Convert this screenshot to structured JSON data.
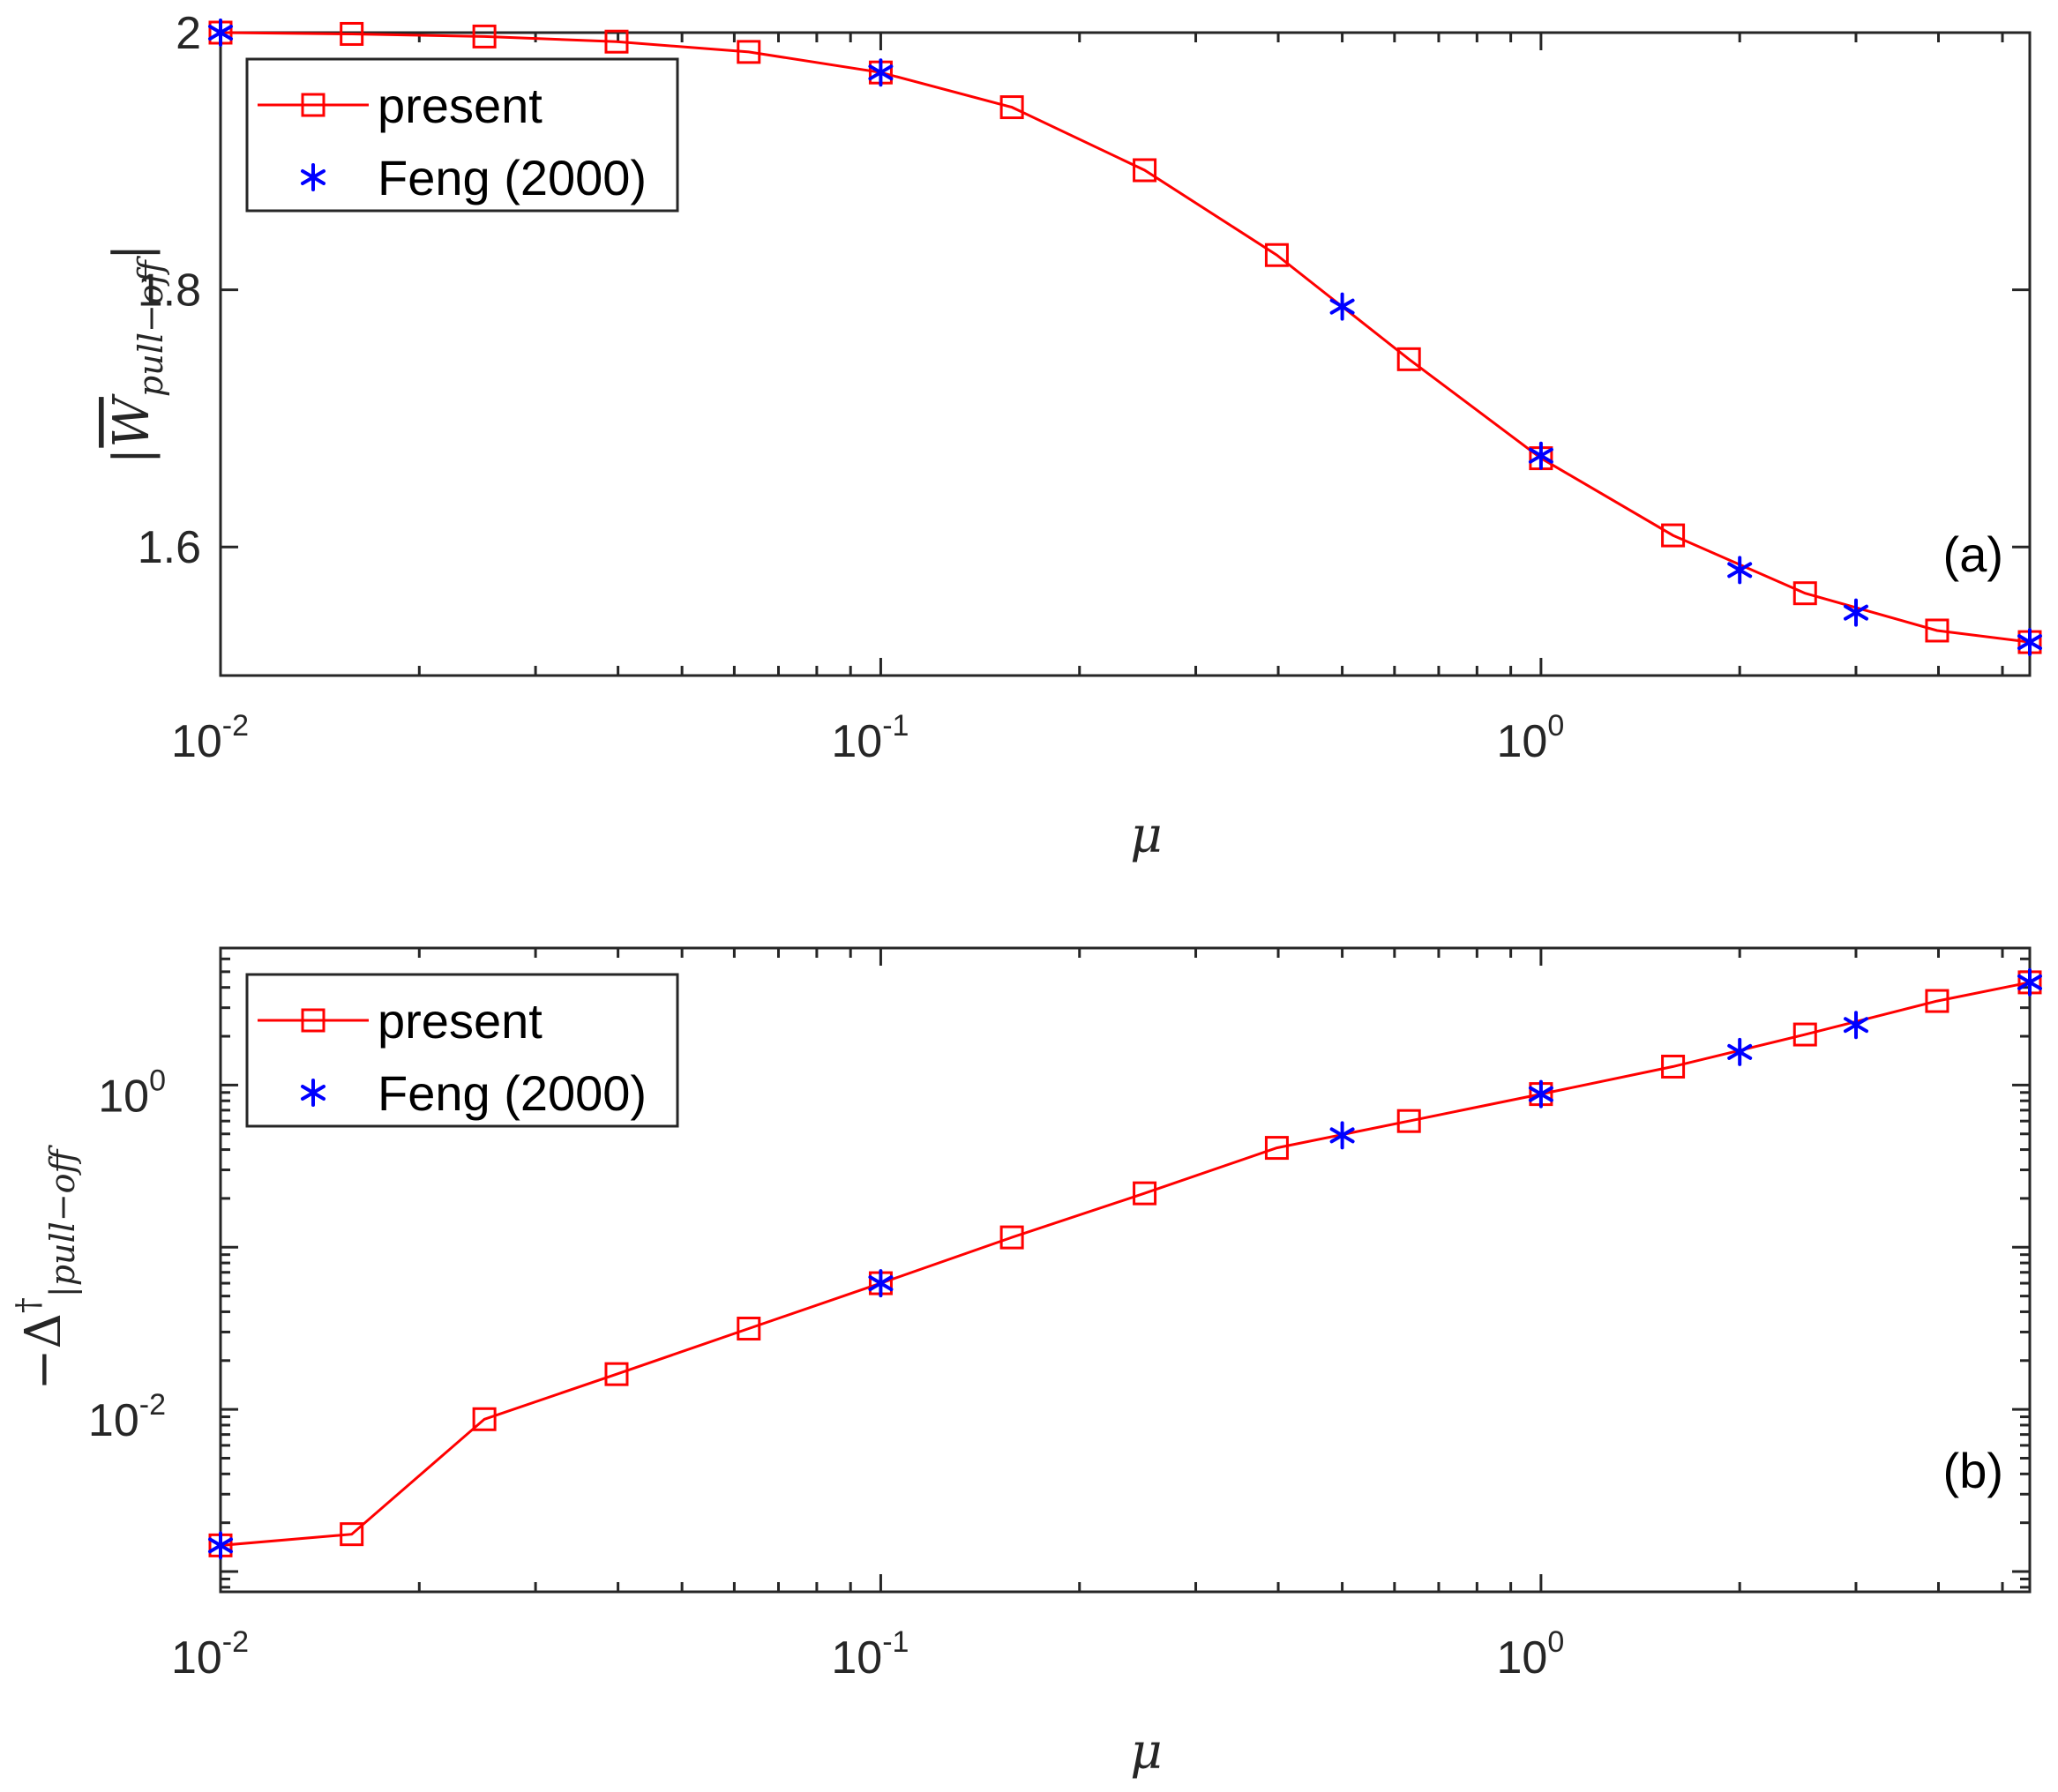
{
  "chart_data": [
    {
      "type": "line",
      "panel_label": "(a)",
      "xlabel": "μ",
      "ylabel": "|W̄pull−off|",
      "ylabel_base": "|",
      "ylabel_symbol": "W",
      "ylabel_sub": "pull−off",
      "ylabel_close": "|",
      "xscale": "log",
      "yscale": "linear",
      "xlim": [
        0.01,
        5.5
      ],
      "ylim": [
        1.5,
        2.0
      ],
      "xticks": [
        0.01,
        0.1,
        1
      ],
      "xtick_bases": [
        "10",
        "10",
        "10"
      ],
      "xtick_exps": [
        "-2",
        "-1",
        "0"
      ],
      "yticks": [
        1.6,
        1.8,
        2.0
      ],
      "ytick_labels": [
        "1.6",
        "1.8",
        "2"
      ],
      "legend": {
        "position": "top-left",
        "entries": [
          "present",
          "Feng (2000)"
        ]
      },
      "series": [
        {
          "name": "present",
          "color": "#ff0000",
          "marker": "square",
          "line": true,
          "x": [
            0.01,
            0.0158,
            0.0251,
            0.0398,
            0.0631,
            0.1,
            0.158,
            0.251,
            0.398,
            0.631,
            1.0,
            1.585,
            2.512,
            3.981,
            5.5
          ],
          "y": [
            2.0,
            1.999,
            1.997,
            1.993,
            1.985,
            1.969,
            1.942,
            1.893,
            1.827,
            1.746,
            1.669,
            1.609,
            1.564,
            1.535,
            1.526
          ]
        },
        {
          "name": "Feng (2000)",
          "color": "#0000ff",
          "marker": "asterisk",
          "line": false,
          "x": [
            0.01,
            0.1,
            0.5,
            1.0,
            2.0,
            3.0,
            5.5
          ],
          "y": [
            2.0,
            1.969,
            1.787,
            1.671,
            1.582,
            1.549,
            1.526
          ]
        }
      ]
    },
    {
      "type": "line",
      "panel_label": "(b)",
      "xlabel": "μ",
      "ylabel": "−Δ†|pull−off",
      "ylabel_base": "−Δ",
      "ylabel_sup": "†",
      "ylabel_sub": "|pull−off",
      "xscale": "log",
      "yscale": "log",
      "xlim": [
        0.01,
        5.5
      ],
      "ylim": [
        0.00075,
        7
      ],
      "xticks": [
        0.01,
        0.1,
        1
      ],
      "xtick_bases": [
        "10",
        "10",
        "10"
      ],
      "xtick_exps": [
        "-2",
        "-1",
        "0"
      ],
      "yticks": [
        0.01,
        1
      ],
      "ytick_bases": [
        "10",
        "10"
      ],
      "ytick_exps": [
        "-2",
        "0"
      ],
      "legend": {
        "position": "top-left",
        "entries": [
          "present",
          "Feng (2000)"
        ]
      },
      "series": [
        {
          "name": "present",
          "color": "#ff0000",
          "marker": "square",
          "line": true,
          "x": [
            0.01,
            0.0158,
            0.0251,
            0.0398,
            0.0631,
            0.1,
            0.158,
            0.251,
            0.398,
            0.631,
            1.0,
            1.585,
            2.512,
            3.981,
            5.5
          ],
          "y": [
            0.00145,
            0.0017,
            0.0087,
            0.0165,
            0.0315,
            0.06,
            0.115,
            0.215,
            0.41,
            0.6,
            0.88,
            1.3,
            2.05,
            3.3,
            4.3
          ]
        },
        {
          "name": "Feng (2000)",
          "color": "#0000ff",
          "marker": "asterisk",
          "line": false,
          "x": [
            0.01,
            0.1,
            0.5,
            1.0,
            2.0,
            3.0,
            5.5
          ],
          "y": [
            0.00145,
            0.06,
            0.49,
            0.88,
            1.6,
            2.35,
            4.3
          ]
        }
      ]
    }
  ]
}
